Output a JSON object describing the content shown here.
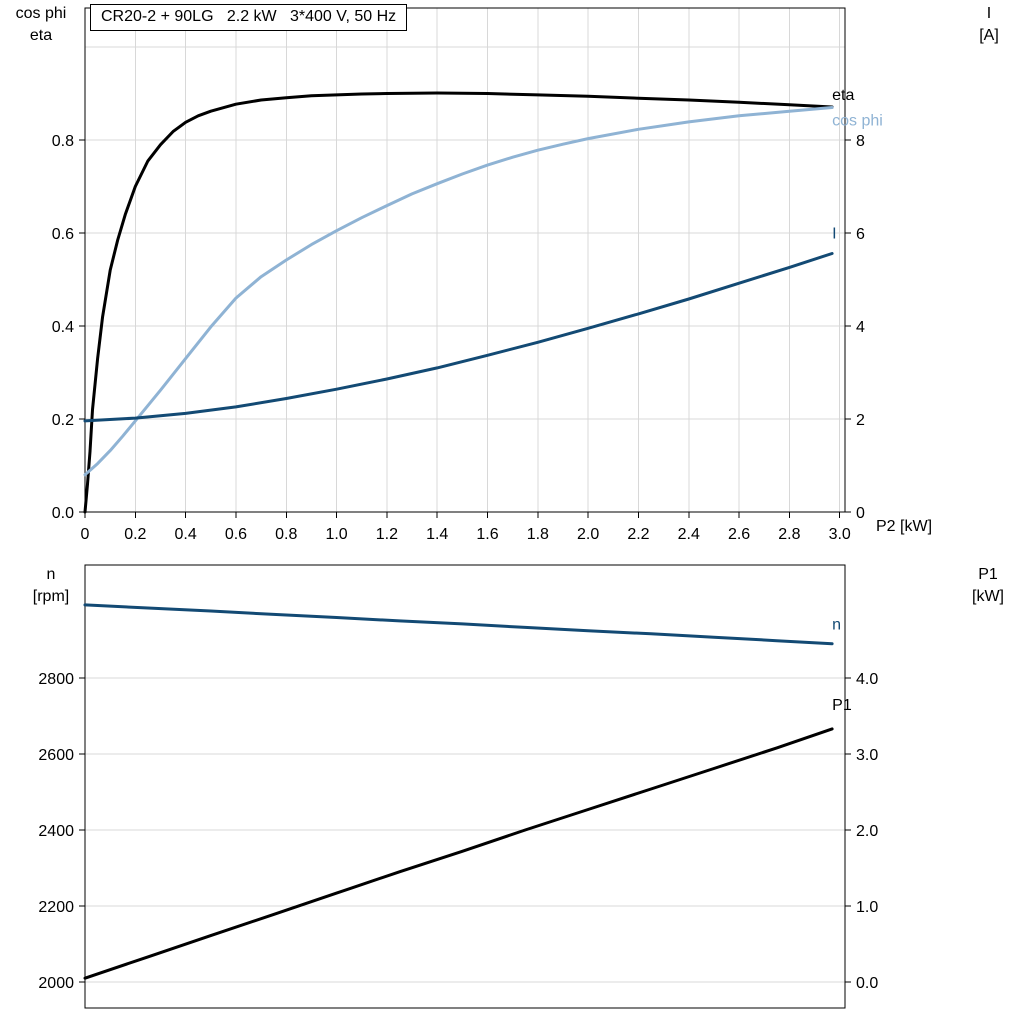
{
  "title_box": {
    "text": "CR20-2 + 90LG   2.2 kW   3*400 V, 50 Hz"
  },
  "axis_corner_labels": {
    "top_left": [
      "cos phi",
      "eta"
    ],
    "top_right": [
      "I",
      "[A]"
    ],
    "bottom_left": [
      "n",
      "[rpm]"
    ],
    "bottom_right": [
      "P1",
      "[kW]"
    ]
  },
  "colors": {
    "eta": "#000000",
    "cos_phi": "#8fb3d4",
    "current": "#134a74",
    "speed": "#134a74",
    "p1": "#000000",
    "grid": "#d8d8d8",
    "axis": "#000000",
    "text": "#000000"
  },
  "chart_data": [
    {
      "type": "line",
      "title": "CR20-2 + 90LG   2.2 kW   3*400 V, 50 Hz",
      "xlabel": "P2 [kW]",
      "x_axis": {
        "range": [
          0,
          3.0211
        ],
        "ticks": [
          {
            "v": 0,
            "t": "0"
          },
          {
            "v": 0.2,
            "t": "0.2"
          },
          {
            "v": 0.4,
            "t": "0.4"
          },
          {
            "v": 0.6,
            "t": "0.6"
          },
          {
            "v": 0.8,
            "t": "0.8"
          },
          {
            "v": 1.0,
            "t": "1.0"
          },
          {
            "v": 1.2,
            "t": "1.2"
          },
          {
            "v": 1.4,
            "t": "1.4"
          },
          {
            "v": 1.6,
            "t": "1.6"
          },
          {
            "v": 1.8,
            "t": "1.8"
          },
          {
            "v": 2.0,
            "t": "2.0"
          },
          {
            "v": 2.2,
            "t": "2.2"
          },
          {
            "v": 2.4,
            "t": "2.4"
          },
          {
            "v": 2.6,
            "t": "2.6"
          },
          {
            "v": 2.8,
            "t": "2.8"
          },
          {
            "v": 3.0,
            "t": "3.0"
          }
        ]
      },
      "left_axis": {
        "label": "cos phi / eta",
        "range": [
          0,
          1.0839
        ],
        "ticks": [
          {
            "v": 0,
            "t": "0.0"
          },
          {
            "v": 0.2,
            "t": "0.2"
          },
          {
            "v": 0.4,
            "t": "0.4"
          },
          {
            "v": 0.6,
            "t": "0.6"
          },
          {
            "v": 0.8,
            "t": "0.8"
          }
        ]
      },
      "right_axis": {
        "label": "I [A]",
        "range": [
          0,
          10.839
        ],
        "ticks": [
          {
            "v": 0,
            "t": "0"
          },
          {
            "v": 2,
            "t": "2"
          },
          {
            "v": 4,
            "t": "4"
          },
          {
            "v": 6,
            "t": "6"
          },
          {
            "v": 8,
            "t": "8"
          }
        ]
      },
      "grid_x": [
        0.2,
        0.4,
        0.6,
        0.8,
        1.0,
        1.2,
        1.4,
        1.6,
        1.8,
        2.0,
        2.2,
        2.4,
        2.6,
        2.8,
        3.0
      ],
      "grid_y_left": [
        0.2,
        0.4,
        0.6,
        0.8,
        1.0
      ],
      "series": [
        {
          "name": "eta",
          "axis": "left",
          "color_key": "eta",
          "label": "eta",
          "label_dy": -7,
          "points": [
            [
              0,
              0
            ],
            [
              0.01,
              0.06
            ],
            [
              0.02,
              0.13
            ],
            [
              0.03,
              0.22
            ],
            [
              0.05,
              0.33
            ],
            [
              0.07,
              0.42
            ],
            [
              0.1,
              0.52
            ],
            [
              0.13,
              0.585
            ],
            [
              0.16,
              0.64
            ],
            [
              0.2,
              0.7
            ],
            [
              0.25,
              0.755
            ],
            [
              0.3,
              0.79
            ],
            [
              0.35,
              0.818
            ],
            [
              0.4,
              0.838
            ],
            [
              0.45,
              0.852
            ],
            [
              0.5,
              0.862
            ],
            [
              0.6,
              0.877
            ],
            [
              0.7,
              0.886
            ],
            [
              0.8,
              0.891
            ],
            [
              0.9,
              0.895
            ],
            [
              1.0,
              0.897
            ],
            [
              1.1,
              0.899
            ],
            [
              1.2,
              0.9
            ],
            [
              1.4,
              0.901
            ],
            [
              1.6,
              0.9
            ],
            [
              1.8,
              0.897
            ],
            [
              2.0,
              0.894
            ],
            [
              2.2,
              0.89
            ],
            [
              2.4,
              0.886
            ],
            [
              2.6,
              0.881
            ],
            [
              2.8,
              0.876
            ],
            [
              2.97,
              0.871
            ]
          ]
        },
        {
          "name": "cos-phi",
          "axis": "left",
          "color_key": "cos_phi",
          "label": "cos phi",
          "label_dy": 18,
          "points": [
            [
              0,
              0.08
            ],
            [
              0.05,
              0.104
            ],
            [
              0.1,
              0.132
            ],
            [
              0.15,
              0.163
            ],
            [
              0.2,
              0.196
            ],
            [
              0.3,
              0.262
            ],
            [
              0.4,
              0.33
            ],
            [
              0.5,
              0.398
            ],
            [
              0.6,
              0.46
            ],
            [
              0.7,
              0.506
            ],
            [
              0.8,
              0.542
            ],
            [
              0.9,
              0.575
            ],
            [
              1.0,
              0.605
            ],
            [
              1.1,
              0.633
            ],
            [
              1.2,
              0.659
            ],
            [
              1.3,
              0.684
            ],
            [
              1.4,
              0.706
            ],
            [
              1.5,
              0.727
            ],
            [
              1.6,
              0.746
            ],
            [
              1.7,
              0.763
            ],
            [
              1.8,
              0.778
            ],
            [
              1.9,
              0.791
            ],
            [
              2.0,
              0.803
            ],
            [
              2.2,
              0.823
            ],
            [
              2.4,
              0.839
            ],
            [
              2.6,
              0.852
            ],
            [
              2.8,
              0.862
            ],
            [
              2.97,
              0.87
            ]
          ]
        },
        {
          "name": "current",
          "axis": "right",
          "color_key": "current",
          "label": "I",
          "label_dy": -15,
          "points": [
            [
              0,
              1.96
            ],
            [
              0.2,
              2.02
            ],
            [
              0.4,
              2.12
            ],
            [
              0.6,
              2.26
            ],
            [
              0.8,
              2.44
            ],
            [
              1.0,
              2.64
            ],
            [
              1.2,
              2.86
            ],
            [
              1.4,
              3.1
            ],
            [
              1.6,
              3.37
            ],
            [
              1.8,
              3.65
            ],
            [
              2.0,
              3.95
            ],
            [
              2.2,
              4.26
            ],
            [
              2.4,
              4.58
            ],
            [
              2.6,
              4.92
            ],
            [
              2.8,
              5.26
            ],
            [
              2.97,
              5.56
            ]
          ]
        }
      ]
    },
    {
      "type": "line",
      "title": "",
      "xlabel": "",
      "x_axis": {
        "range": [
          0,
          3.0211
        ],
        "ticks": []
      },
      "left_axis": {
        "label": "n [rpm]",
        "range": [
          1932,
          3097
        ],
        "ticks": [
          {
            "v": 2000,
            "t": "2000"
          },
          {
            "v": 2200,
            "t": "2200"
          },
          {
            "v": 2400,
            "t": "2400"
          },
          {
            "v": 2600,
            "t": "2600"
          },
          {
            "v": 2800,
            "t": "2800"
          }
        ]
      },
      "right_axis": {
        "label": "P1 [kW]",
        "range": [
          -0.342,
          5.487
        ],
        "ticks": [
          {
            "v": 0,
            "t": "0.0"
          },
          {
            "v": 1,
            "t": "1.0"
          },
          {
            "v": 2,
            "t": "2.0"
          },
          {
            "v": 3,
            "t": "3.0"
          },
          {
            "v": 4,
            "t": "4.0"
          }
        ]
      },
      "grid_x": [],
      "grid_y_left": [
        2000,
        2200,
        2400,
        2600,
        2800
      ],
      "series": [
        {
          "name": "speed",
          "axis": "left",
          "color_key": "speed",
          "label": "n",
          "label_dy": -14,
          "points": [
            [
              0,
              2992
            ],
            [
              0.25,
              2984
            ],
            [
              0.5,
              2976
            ],
            [
              0.75,
              2967
            ],
            [
              1.0,
              2959
            ],
            [
              1.25,
              2950
            ],
            [
              1.5,
              2942
            ],
            [
              1.75,
              2933
            ],
            [
              2.0,
              2924
            ],
            [
              2.25,
              2916
            ],
            [
              2.5,
              2907
            ],
            [
              2.75,
              2898
            ],
            [
              2.97,
              2890
            ]
          ]
        },
        {
          "name": "p1",
          "axis": "right",
          "color_key": "p1",
          "label": "P1",
          "label_dy": -19,
          "points": [
            [
              0,
              0.05
            ],
            [
              0.25,
              0.33
            ],
            [
              0.5,
              0.61
            ],
            [
              0.75,
              0.89
            ],
            [
              1.0,
              1.17
            ],
            [
              1.25,
              1.45
            ],
            [
              1.5,
              1.72
            ],
            [
              1.75,
              2.0
            ],
            [
              2.0,
              2.27
            ],
            [
              2.25,
              2.54
            ],
            [
              2.5,
              2.81
            ],
            [
              2.75,
              3.08
            ],
            [
              2.97,
              3.33
            ]
          ]
        }
      ]
    }
  ]
}
